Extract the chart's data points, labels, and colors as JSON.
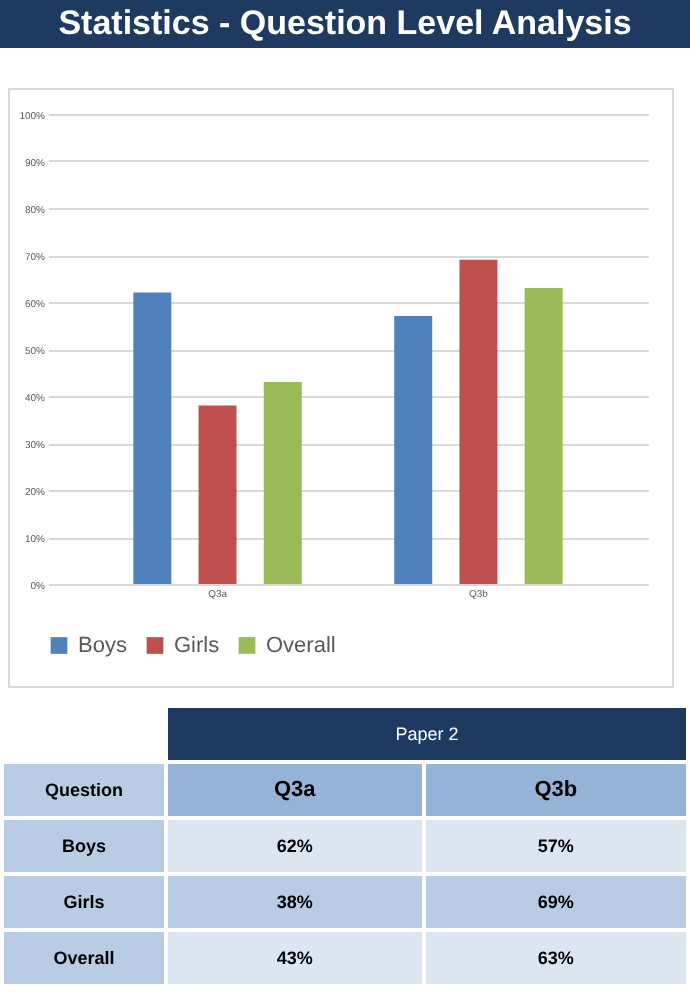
{
  "chart_data": {
    "type": "bar",
    "title": "Statistics - Question Level Analysis",
    "categories": [
      "Q3a",
      "Q3b"
    ],
    "series": [
      {
        "name": "Boys",
        "color": "#4f81bd",
        "values": [
          62,
          57
        ],
        "value_labels": [
          "62%",
          "57%"
        ]
      },
      {
        "name": "Girls",
        "color": "#c0504d",
        "values": [
          38,
          69
        ],
        "value_labels": [
          "38%",
          "69%"
        ]
      },
      {
        "name": "Overall",
        "color": "#9bbb59",
        "values": [
          43,
          63
        ],
        "value_labels": [
          "43%",
          "63%"
        ]
      }
    ],
    "ylim": [
      0,
      100
    ],
    "yticks": [
      {
        "value": 0,
        "label": "0%"
      },
      {
        "value": 10,
        "label": "10%"
      },
      {
        "value": 20,
        "label": "20%"
      },
      {
        "value": 30,
        "label": "30%"
      },
      {
        "value": 40,
        "label": "40%"
      },
      {
        "value": 50,
        "label": "50%"
      },
      {
        "value": 60,
        "label": "60%"
      },
      {
        "value": 70,
        "label": "70%"
      },
      {
        "value": 80,
        "label": "80%"
      },
      {
        "value": 90,
        "label": "90%"
      },
      {
        "value": 100,
        "label": "100%"
      }
    ],
    "grid": "y",
    "legend": "bottom",
    "annotations": [
      "Paper 2",
      "Question"
    ]
  }
}
